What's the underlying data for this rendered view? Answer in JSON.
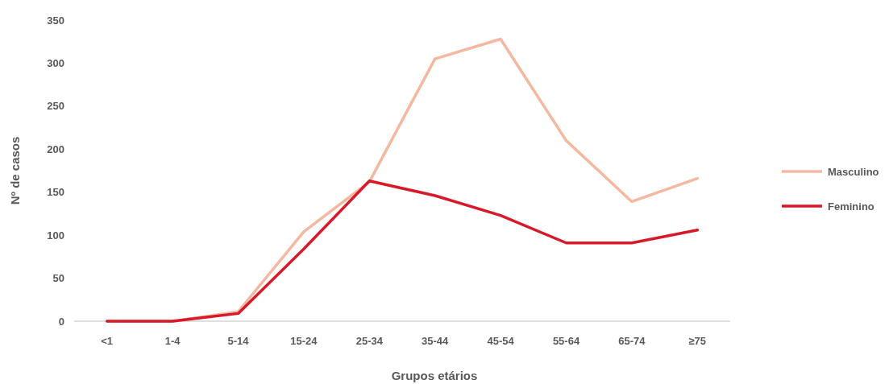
{
  "chart_data": {
    "type": "line",
    "xlabel": "Grupos etários",
    "ylabel": "Nº de casos",
    "categories": [
      "<1",
      "1-4",
      "5-14",
      "15-24",
      "25-34",
      "35-44",
      "45-54",
      "55-64",
      "65-74",
      "≥75"
    ],
    "series": [
      {
        "name": "Masculino",
        "color": "#f4b8a0",
        "values": [
          0,
          0,
          11,
          104,
          162,
          305,
          328,
          210,
          139,
          166
        ]
      },
      {
        "name": "Feminino",
        "color": "#d7192a",
        "values": [
          0,
          0,
          9,
          84,
          163,
          146,
          123,
          91,
          91,
          106
        ]
      }
    ],
    "ylim": [
      0,
      350
    ],
    "yticks": [
      0,
      50,
      100,
      150,
      200,
      250,
      300,
      350
    ],
    "grid": false,
    "legend": "right",
    "marker": "none",
    "line_style": "solid"
  }
}
